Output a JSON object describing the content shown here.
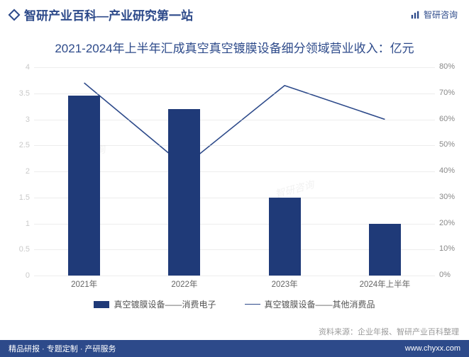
{
  "header": {
    "title": "智研产业百科—产业研究第一站",
    "accent_color": "#2d4a8a",
    "brand_label": "智研咨询",
    "brand_color": "#2d4a8a"
  },
  "subtitle": {
    "text": "2021-2024年上半年汇成真空真空镀膜设备细分领域营业收入：亿元",
    "color": "#2d4a8a",
    "fontsize": 17
  },
  "chart": {
    "type": "bar+line",
    "categories": [
      "2021年",
      "2022年",
      "2023年",
      "2024年上半年"
    ],
    "bars": {
      "label": "真空镀膜设备——消费电子",
      "values": [
        3.45,
        3.2,
        1.5,
        1.0
      ],
      "color": "#1f3a78",
      "width_frac": 0.32
    },
    "line": {
      "label": "真空镀膜设备——其他消费品",
      "values_pct": [
        74,
        42,
        73,
        60
      ],
      "color": "#2d4a8a",
      "width": 1.6
    },
    "y_left": {
      "min": 0,
      "max": 4,
      "step": 0.5,
      "color": "#888"
    },
    "y_right": {
      "min": 0,
      "max": 80,
      "step": 10,
      "suffix": "%",
      "color": "#888"
    },
    "grid_color": "#d8d8d8",
    "background": "#ffffff",
    "x_label_color": "#666"
  },
  "source": {
    "text": "资料来源：企业年报、智研产业百科整理",
    "color": "#9a9a9a"
  },
  "footer": {
    "bg": "#2d4a8a",
    "left": "精品研报 · 专题定制 · 产研服务",
    "right": "www.chyxx.com"
  },
  "watermark": "智研咨询"
}
